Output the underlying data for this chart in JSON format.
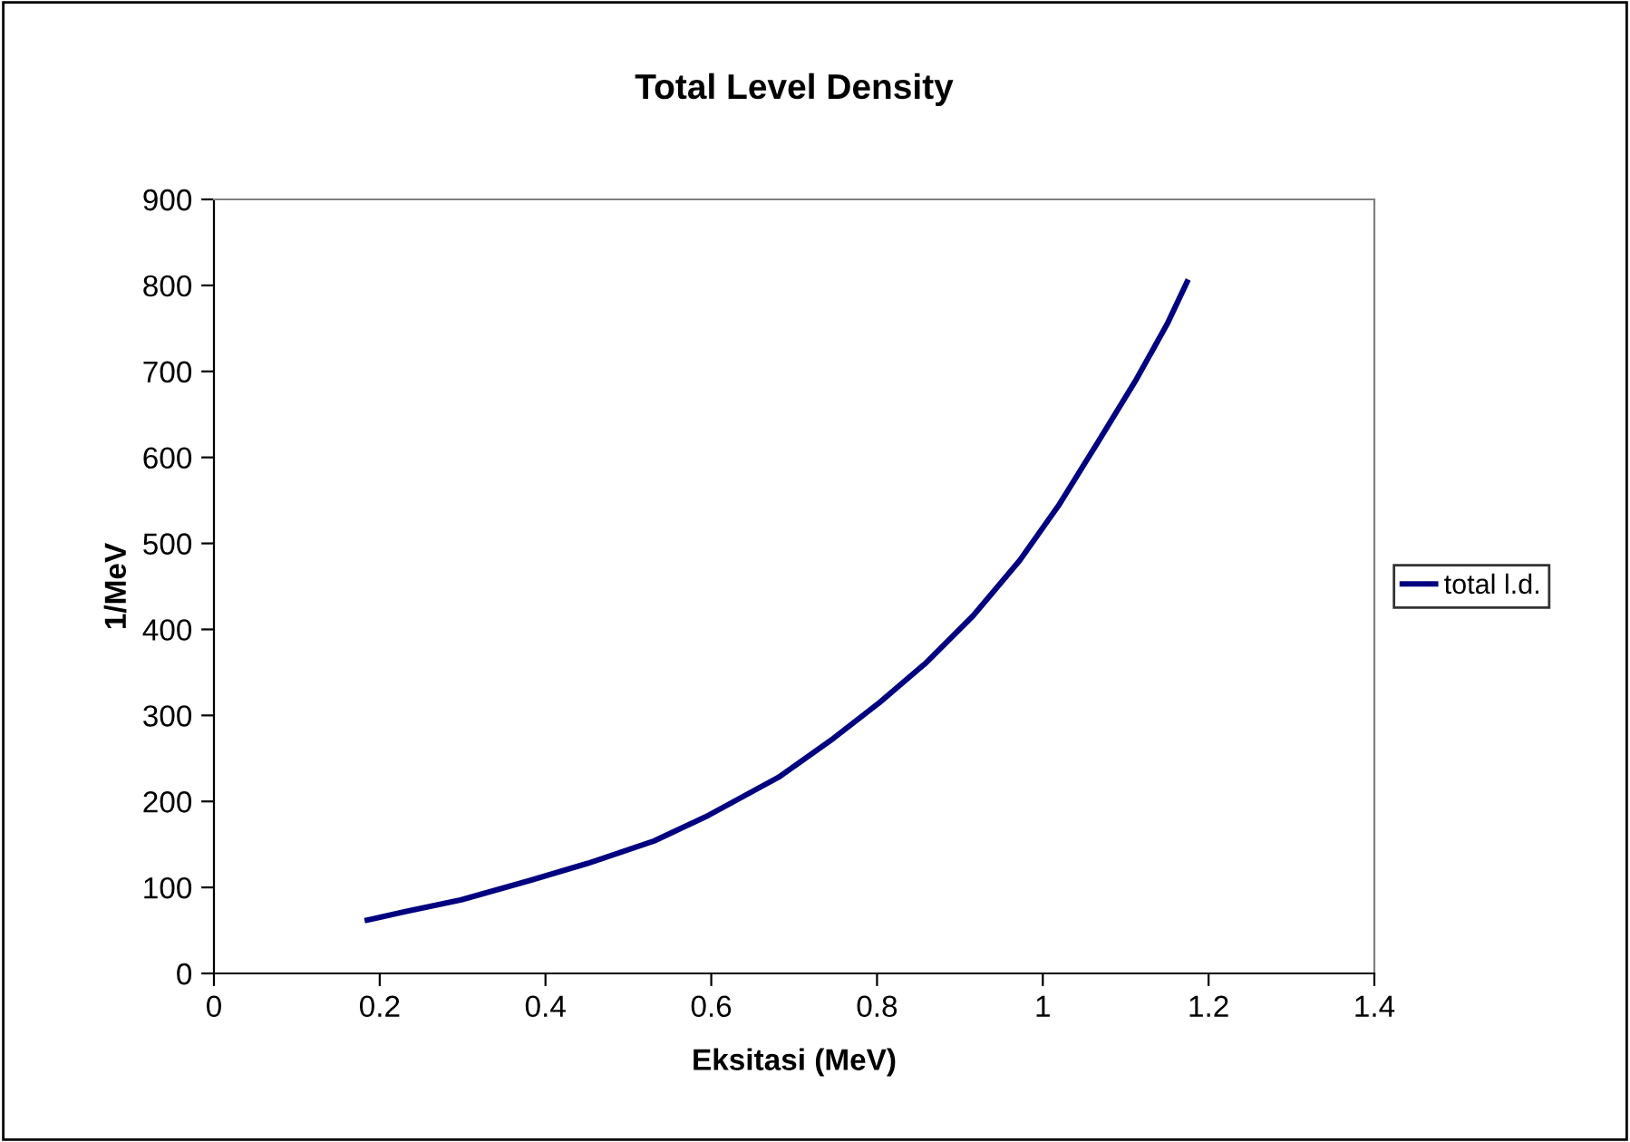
{
  "chart_data": {
    "type": "line",
    "title": "Total Level Density",
    "xlabel": "Eksitasi (MeV)",
    "ylabel": "1/MeV",
    "xlim": [
      0,
      1.4
    ],
    "xticks": [
      0,
      0.2,
      0.4,
      0.6,
      0.8,
      1,
      1.2,
      1.4
    ],
    "ylim": [
      0,
      900
    ],
    "yticks": [
      0,
      100,
      200,
      300,
      400,
      500,
      600,
      700,
      800,
      900
    ],
    "grid": false,
    "legend": "right",
    "marker": "none",
    "line_style": "solid",
    "series": [
      {
        "name": "total l.d.",
        "color": "#000080",
        "x": [
          0.185,
          0.231,
          0.296,
          0.381,
          0.451,
          0.531,
          0.597,
          0.681,
          0.747,
          0.803,
          0.859,
          0.916,
          0.972,
          1.019,
          1.066,
          1.113,
          1.15,
          1.174
        ],
        "values": [
          62,
          72,
          85,
          108,
          128,
          154,
          184,
          228,
          273,
          315,
          361,
          416,
          480,
          544,
          617,
          691,
          755,
          804
        ]
      }
    ]
  }
}
